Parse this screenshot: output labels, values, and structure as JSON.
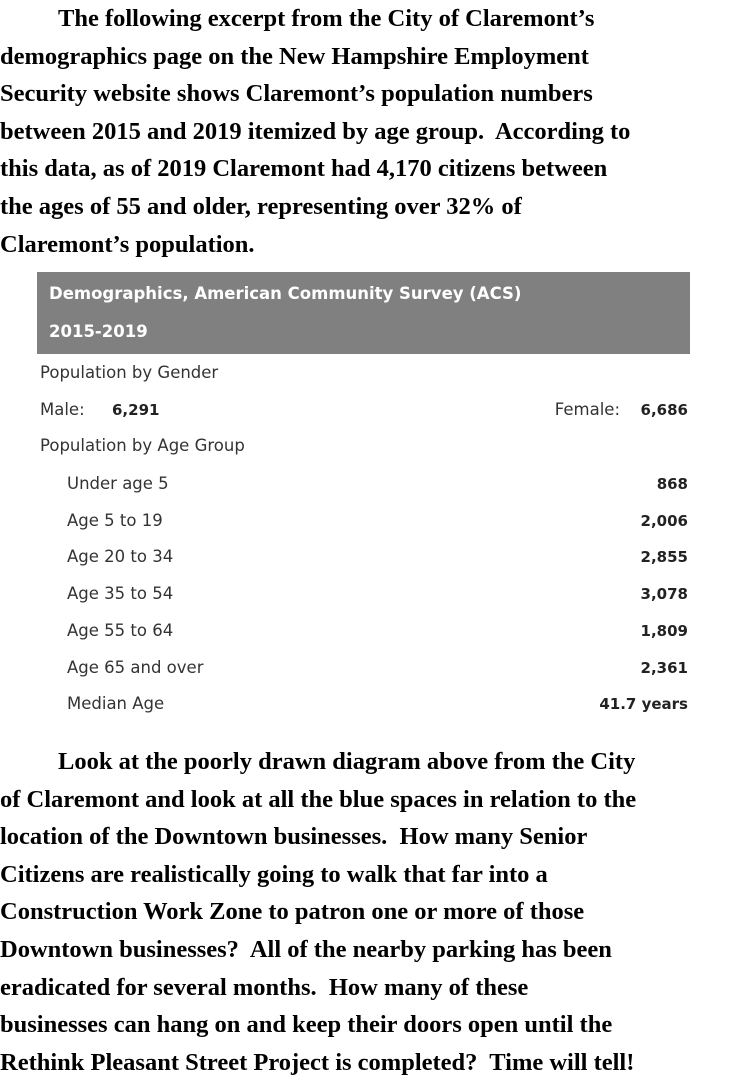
{
  "paragraphs": [
    {
      "lines": [
        "The following excerpt from the City of Claremont’s",
        "demographics page on the New Hampshire Employment",
        "Security website shows Claremont’s population numbers",
        "between 2015 and 2019 itemized by age group.  According to",
        "this data, as of 2019 Claremont had 4,170 citizens between",
        "the ages of 55 and older, representing over 32% of",
        "Claremont’s population."
      ]
    },
    {
      "lines": [
        "Look at the poorly drawn diagram above from the City",
        "of Claremont and look at all the blue spaces in relation to the",
        "location of the Downtown businesses.  How many Senior",
        "Citizens are realistically going to walk that far into a",
        "Construction Work Zone to patron one or more of those",
        "Downtown businesses?  All of the nearby parking has been",
        "eradicated for several months.  How many of these",
        "businesses can hang on and keep their doors open until the",
        "Rethink Pleasant Street Project is completed?  Time will tell!"
      ]
    }
  ],
  "table": {
    "header_lines": [
      "Demographics, American Community Survey (ACS)",
      "2015-2019"
    ],
    "gender": {
      "label": "Population by Gender",
      "male_label": "Male:",
      "male_value": "6,291",
      "female_label": "Female:",
      "female_value": "6,686"
    },
    "age": {
      "label": "Population by Age Group",
      "rows": [
        [
          "Under age 5",
          "868"
        ],
        [
          "Age 5 to 19",
          "2,006"
        ],
        [
          "Age 20 to 34",
          "2,855"
        ],
        [
          "Age 35 to 54",
          "3,078"
        ],
        [
          "Age 55 to 64",
          "1,809"
        ],
        [
          "Age 65 and over",
          "2,361"
        ],
        [
          "Median Age",
          "41.7 years"
        ]
      ]
    }
  }
}
